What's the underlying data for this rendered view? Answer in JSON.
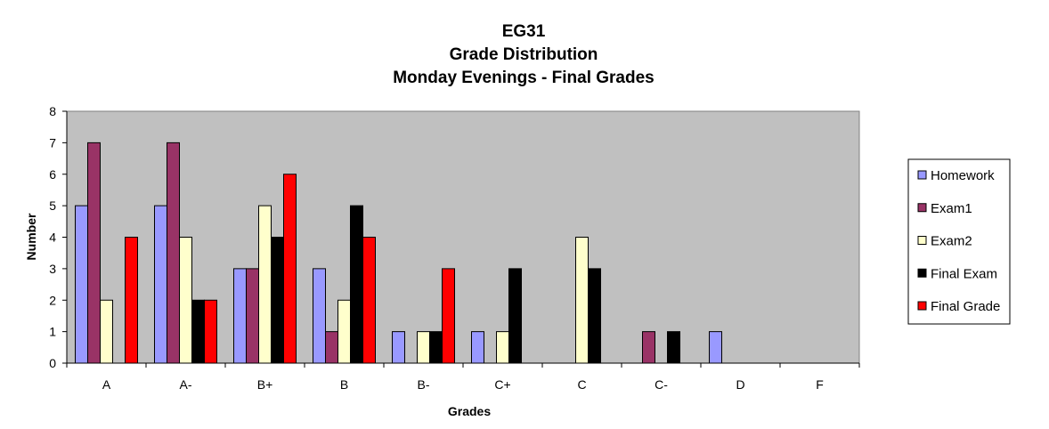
{
  "chart_data": {
    "type": "bar",
    "title_lines": [
      "EG31",
      "Grade Distribution",
      "Monday Evenings - Final Grades"
    ],
    "xlabel": "Grades",
    "ylabel": "Number",
    "ylim": [
      0,
      8
    ],
    "yticks": [
      0,
      1,
      2,
      3,
      4,
      5,
      6,
      7,
      8
    ],
    "categories": [
      "A",
      "A-",
      "B+",
      "B",
      "B-",
      "C+",
      "C",
      "C-",
      "D",
      "F"
    ],
    "series": [
      {
        "name": "Homework",
        "color": "#9999ff",
        "values": [
          5,
          5,
          3,
          3,
          1,
          1,
          0,
          0,
          1,
          0
        ]
      },
      {
        "name": "Exam1",
        "color": "#993366",
        "values": [
          7,
          7,
          3,
          1,
          0,
          0,
          0,
          1,
          0,
          0
        ]
      },
      {
        "name": "Exam2",
        "color": "#ffffcc",
        "values": [
          2,
          4,
          5,
          2,
          1,
          1,
          4,
          0,
          0,
          0
        ]
      },
      {
        "name": "Final Exam",
        "color": "#000000",
        "values": [
          0,
          2,
          4,
          5,
          1,
          3,
          3,
          1,
          0,
          0
        ]
      },
      {
        "name": "Final Grade",
        "color": "#ff0000",
        "values": [
          4,
          2,
          6,
          4,
          3,
          0,
          0,
          0,
          0,
          0
        ]
      }
    ],
    "plot_background": "#c0c0c0",
    "grid": false,
    "legend_position": "right"
  }
}
